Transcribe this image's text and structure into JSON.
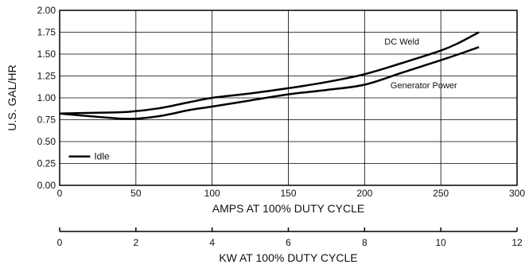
{
  "chart_data": {
    "type": "line",
    "ylabel": "U.S. GAL/HR",
    "xlabel": "AMPS AT 100% DUTY CYCLE",
    "secondary_xlabel": "KW AT 100% DUTY CYCLE",
    "xlim": [
      0,
      300
    ],
    "ylim": [
      0,
      2.0
    ],
    "secondary_xlim": [
      0,
      12
    ],
    "x_ticks": [
      "0",
      "50",
      "100",
      "150",
      "200",
      "250",
      "300"
    ],
    "y_ticks": [
      "0.00",
      "0.25",
      "0.50",
      "0.75",
      "1.00",
      "1.25",
      "1.50",
      "1.75",
      "2.00"
    ],
    "secondary_x_ticks": [
      "0",
      "2",
      "4",
      "6",
      "8",
      "10",
      "12"
    ],
    "grid": true,
    "series": [
      {
        "name": "DC Weld",
        "x": [
          0,
          25,
          45,
          65,
          85,
          100,
          125,
          150,
          175,
          200,
          225,
          250,
          262,
          275
        ],
        "y": [
          0.82,
          0.83,
          0.84,
          0.88,
          0.95,
          1.0,
          1.05,
          1.11,
          1.18,
          1.27,
          1.4,
          1.54,
          1.63,
          1.75
        ]
      },
      {
        "name": "Generator Power",
        "x": [
          0,
          20,
          45,
          65,
          85,
          100,
          125,
          150,
          175,
          200,
          225,
          250,
          262,
          275
        ],
        "y": [
          0.82,
          0.79,
          0.76,
          0.79,
          0.86,
          0.9,
          0.97,
          1.04,
          1.09,
          1.15,
          1.29,
          1.43,
          1.5,
          1.58
        ]
      }
    ],
    "annotations": [
      {
        "text": "DC Weld",
        "x": 213,
        "y": 1.61
      },
      {
        "text": "Generator Power",
        "x": 217,
        "y": 1.11
      }
    ],
    "legend": {
      "label": "Idle",
      "y": 0.33,
      "x_start": 6,
      "x_end": 20
    }
  }
}
